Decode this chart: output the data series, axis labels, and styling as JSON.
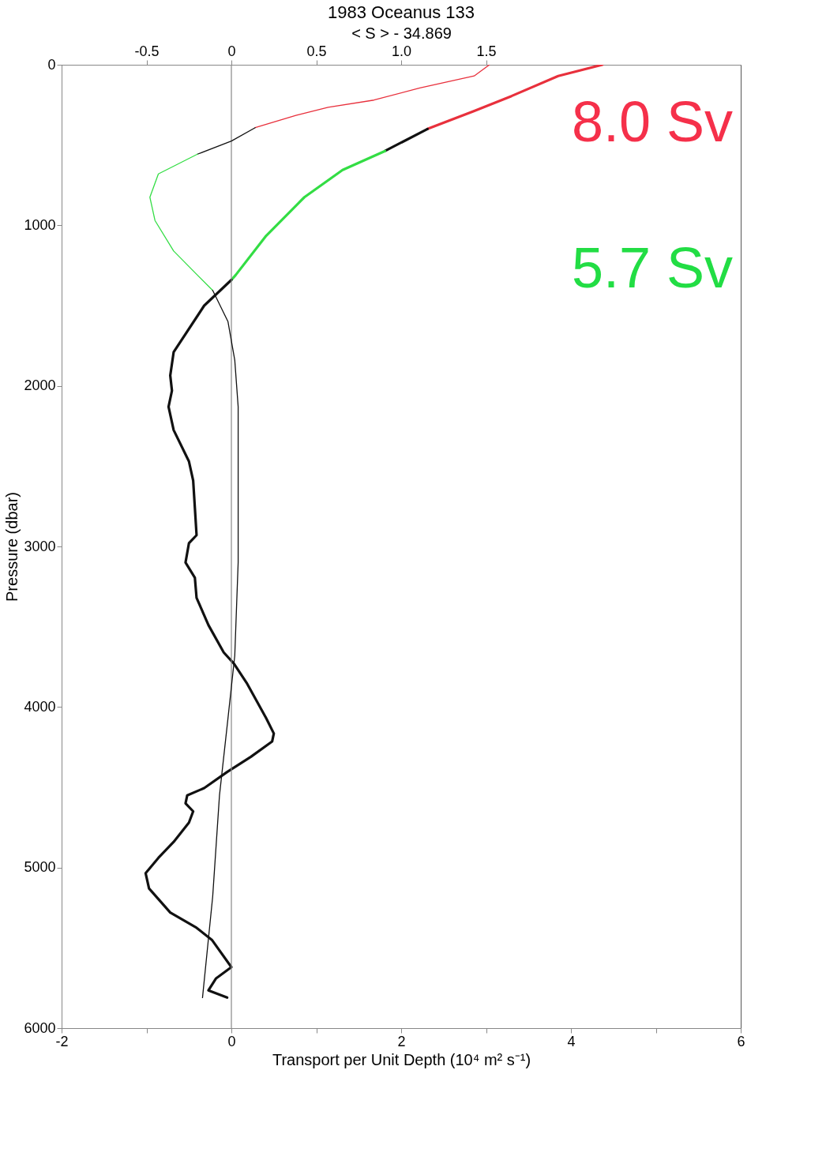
{
  "chart_data": {
    "type": "line",
    "title": "1983 Oceanus 133",
    "x2label": "< S > - 34.869",
    "xlabel": "Transport per Unit Depth (10⁴ m² s⁻¹)",
    "ylabel": "Pressure (dbar)",
    "xlim": [
      -2,
      6
    ],
    "xticks": [
      -2,
      {
        "value": -1,
        "label": null
      },
      0,
      {
        "value": 1,
        "label": null
      },
      2,
      {
        "value": 3,
        "label": null
      },
      4,
      {
        "value": 5,
        "label": null
      },
      6
    ],
    "x2lim": [
      -1,
      3
    ],
    "x2ticks": [
      -0.5,
      0,
      0.5,
      {
        "value": 1,
        "label": "1.0"
      },
      1.5
    ],
    "ylim": [
      6000,
      0
    ],
    "yticks": [
      0,
      1000,
      2000,
      3000,
      4000,
      5000,
      6000
    ],
    "grid": false,
    "marker": "none",
    "line_style": "solid",
    "ref_lines": [
      {
        "axis": "x",
        "value": 0,
        "color": "#888888"
      }
    ],
    "annotations": [
      "8.0 Sv",
      "5.7 Sv"
    ],
    "series": [
      {
        "color": "#e8303c",
        "x": [
          4.37,
          3.85,
          3.3,
          2.85,
          2.31
        ],
        "values": [
          0,
          70,
          195,
          290,
          400
        ]
      },
      {
        "color": "#111111",
        "x": [
          2.31,
          1.81
        ],
        "values": [
          400,
          537
        ]
      },
      {
        "color": "#33dd44",
        "x": [
          1.81,
          1.31,
          0.86,
          0.41,
          0.05,
          0
        ],
        "values": [
          537,
          655,
          825,
          1065,
          1310,
          1340
        ]
      },
      {
        "color": "#111111",
        "x": [
          0,
          -0.32,
          -0.68,
          -0.72,
          -0.7,
          -0.74,
          -0.68,
          -0.5,
          -0.45,
          -0.43,
          -0.41,
          -0.5,
          -0.54,
          -0.43,
          -0.41,
          -0.27,
          -0.09,
          0.03,
          0.18,
          0.41,
          0.5,
          0.48,
          0.23,
          -0.05,
          -0.32,
          -0.52,
          -0.54,
          -0.45,
          -0.5,
          -0.68,
          -0.86,
          -1.01,
          -0.97,
          -0.72,
          -0.41,
          -0.23,
          0,
          -0.18,
          -0.27,
          -0.05
        ],
        "values": [
          1340,
          1500,
          1790,
          1935,
          2030,
          2130,
          2275,
          2470,
          2590,
          2760,
          2930,
          2980,
          3100,
          3195,
          3320,
          3490,
          3660,
          3730,
          3850,
          4070,
          4165,
          4215,
          4310,
          4405,
          4505,
          4550,
          4600,
          4650,
          4720,
          4840,
          4940,
          5035,
          5130,
          5280,
          5375,
          5450,
          5620,
          5690,
          5765,
          5810
        ]
      },
      {
        "axis": "x2",
        "color": "#e8303c",
        "x": [
          1.52,
          1.43,
          1.11,
          0.84,
          0.57,
          0.38,
          0.14
        ],
        "values": [
          0,
          70,
          145,
          220,
          265,
          315,
          392
        ]
      },
      {
        "axis": "x2",
        "color": "#111111",
        "x": [
          0.14,
          0,
          -0.2
        ],
        "values": [
          392,
          475,
          557
        ]
      },
      {
        "axis": "x2",
        "color": "#33dd44",
        "x": [
          -0.2,
          -0.43,
          -0.48,
          -0.45,
          -0.34,
          -0.2,
          -0.11
        ],
        "values": [
          557,
          680,
          825,
          970,
          1160,
          1310,
          1405
        ]
      },
      {
        "axis": "x2",
        "color": "#111111",
        "x": [
          -0.11,
          -0.02,
          0.02,
          0.04,
          0.04,
          0.02,
          -0.02,
          -0.07,
          -0.11,
          -0.17
        ],
        "values": [
          1405,
          1600,
          1840,
          2130,
          3100,
          3680,
          4070,
          4550,
          5180,
          5810
        ]
      }
    ]
  }
}
